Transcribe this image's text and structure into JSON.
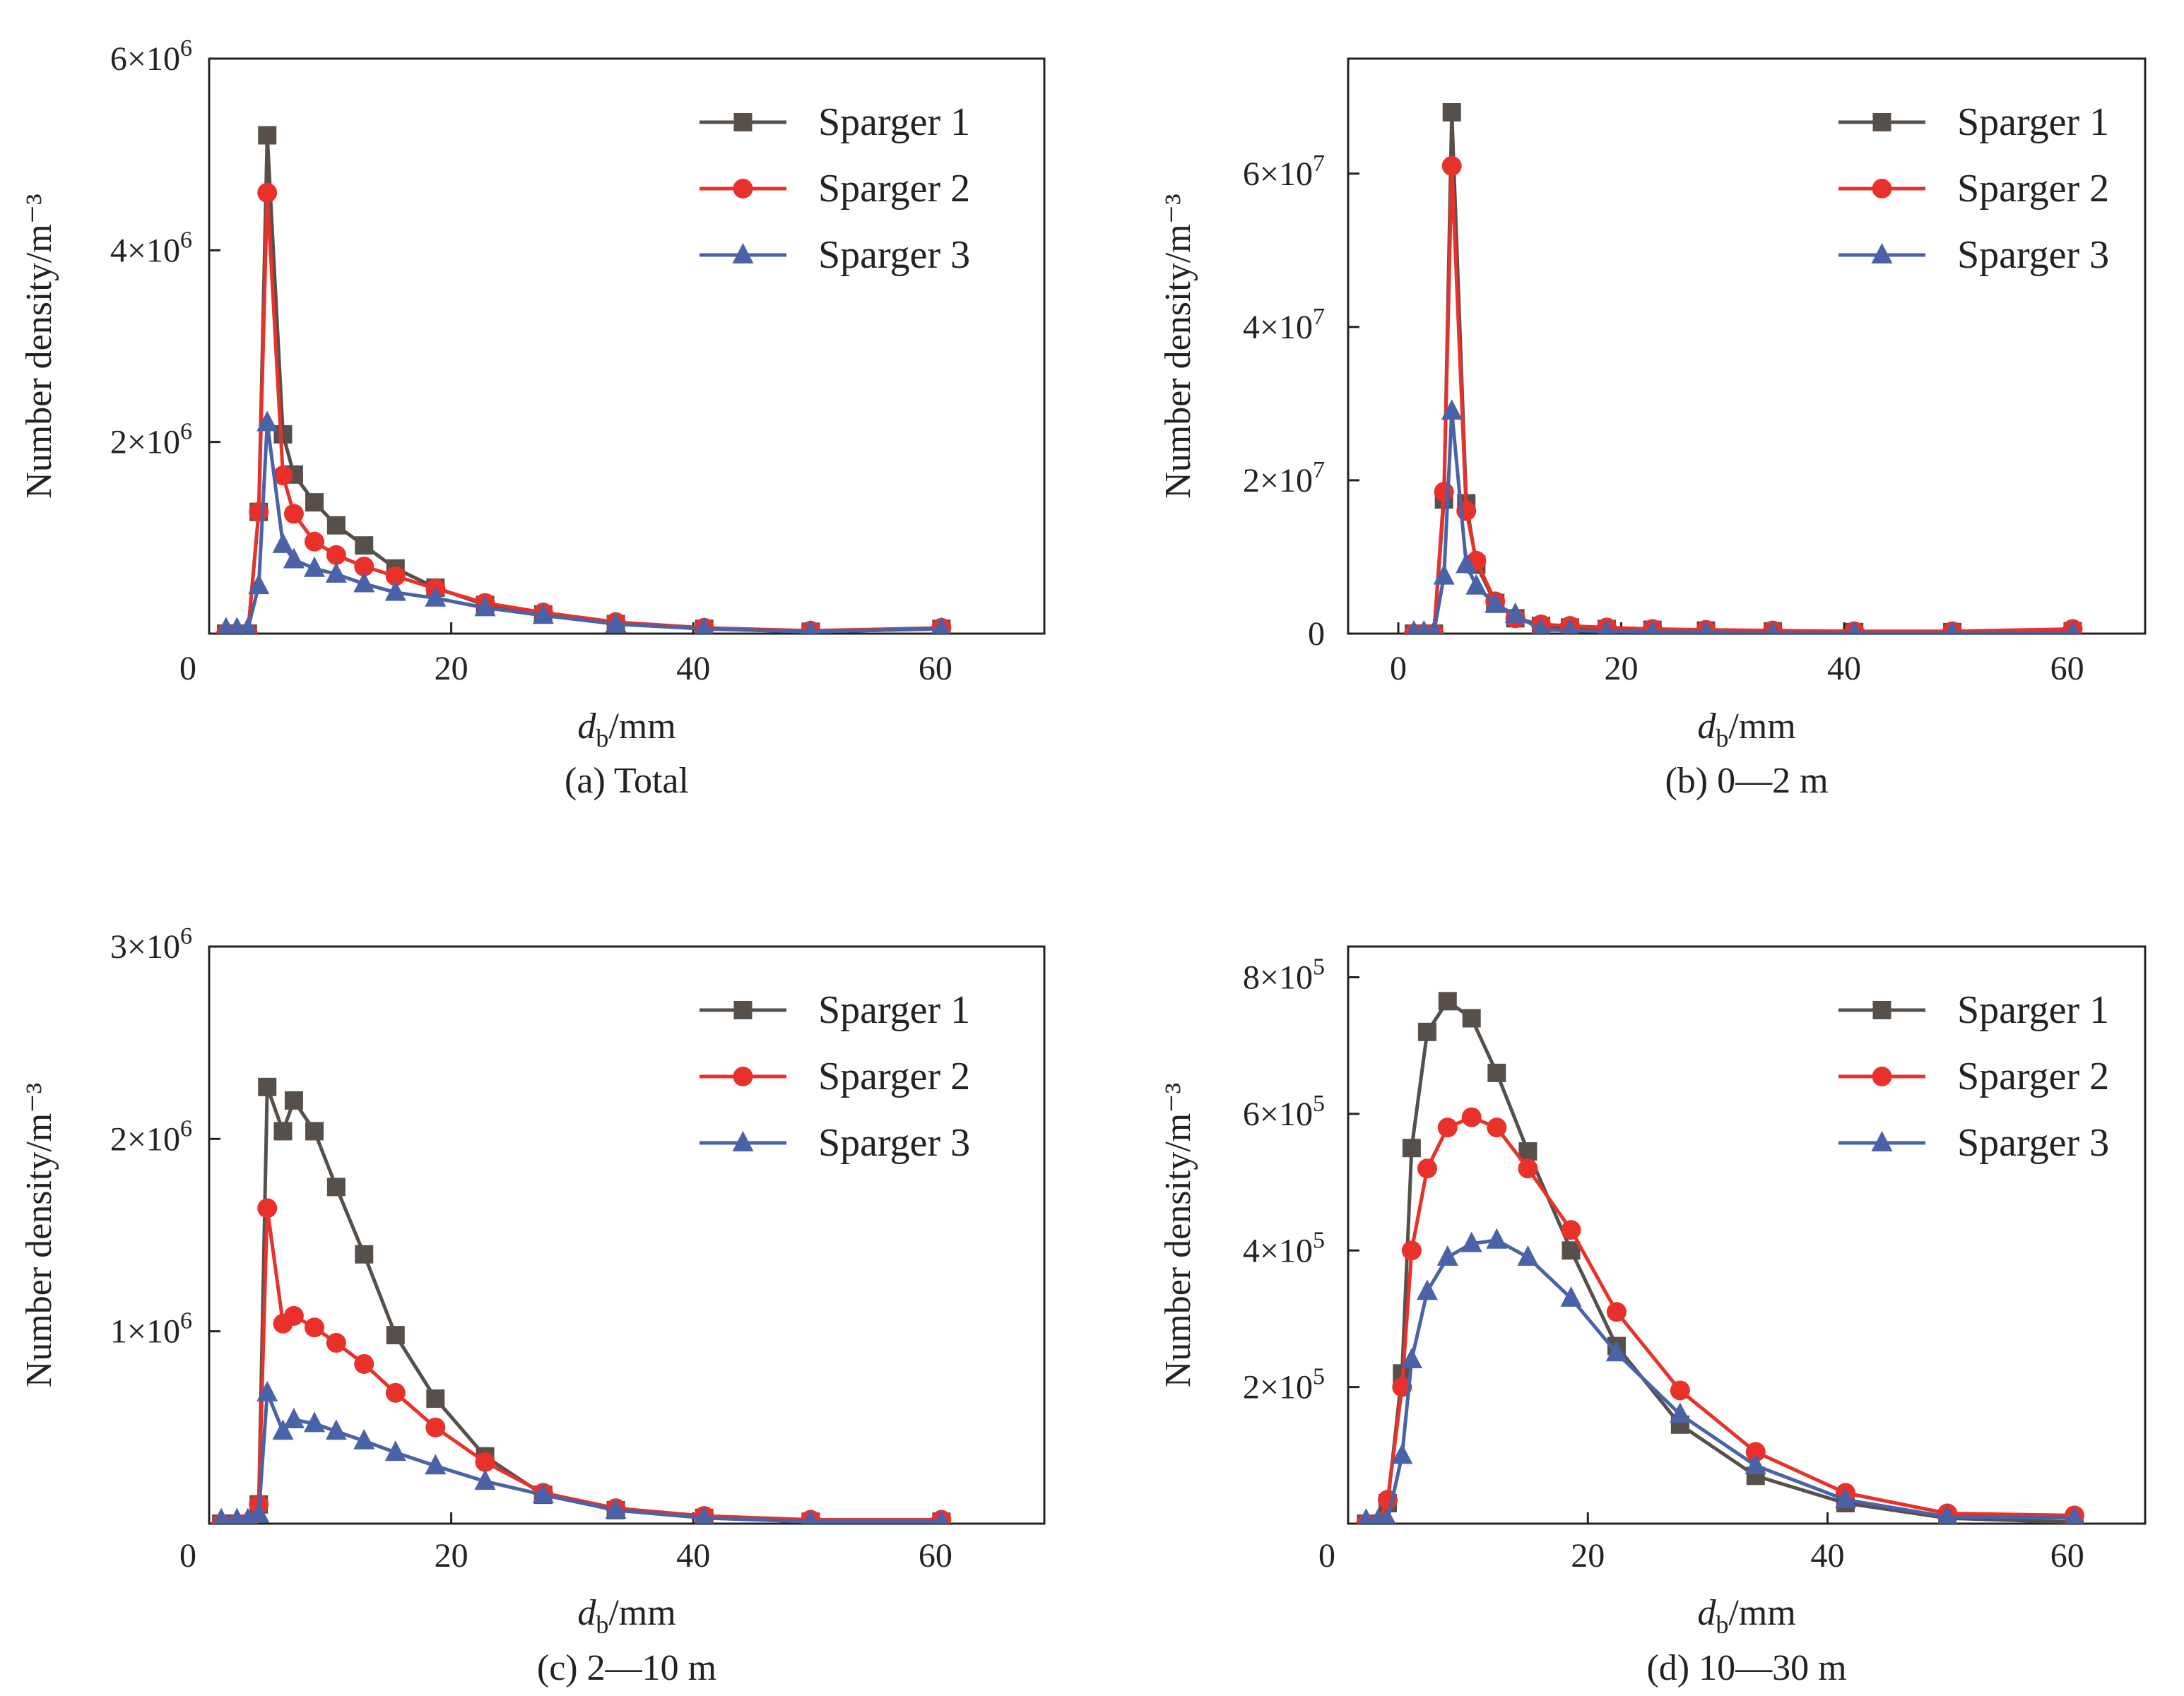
{
  "colors": {
    "Sparger 1": "#574f4a",
    "Sparger 2": "#e8312b",
    "Sparger 3": "#4a62a8"
  },
  "chart_data": [
    {
      "type": "line",
      "caption": "(a) Total",
      "ylabel": "Number density/m⁻³",
      "xlabel": {
        "var": "d",
        "sub": "b",
        "unit": "/mm"
      },
      "xlim": [
        0,
        69
      ],
      "ylim": [
        0,
        6000000
      ],
      "xticks": [
        0,
        20,
        40,
        60
      ],
      "yticks": [
        2000000,
        4000000,
        6000000
      ],
      "legend": "top-right",
      "grid": false,
      "x": [
        1.4,
        2.3,
        3.2,
        4.1,
        4.8,
        6.1,
        7.0,
        8.7,
        10.5,
        12.8,
        15.4,
        18.7,
        22.8,
        27.6,
        33.6,
        40.9,
        49.7,
        60.5
      ],
      "series": [
        {
          "name": "Sparger 1",
          "marker": "square",
          "values": [
            0,
            0,
            0,
            1270000,
            5200000,
            2080000,
            1660000,
            1370000,
            1130000,
            920000,
            680000,
            480000,
            300000,
            200000,
            100000,
            50000,
            20000,
            50000
          ]
        },
        {
          "name": "Sparger 2",
          "marker": "circle",
          "values": [
            0,
            0,
            0,
            1270000,
            4600000,
            1650000,
            1250000,
            960000,
            820000,
            700000,
            600000,
            470000,
            320000,
            220000,
            120000,
            60000,
            30000,
            60000
          ]
        },
        {
          "name": "Sparger 3",
          "marker": "triangle",
          "values": [
            50000,
            50000,
            50000,
            500000,
            2200000,
            930000,
            770000,
            680000,
            620000,
            520000,
            430000,
            370000,
            270000,
            190000,
            100000,
            50000,
            20000,
            50000
          ]
        }
      ]
    },
    {
      "type": "line",
      "caption": "(b) 0—2 m",
      "ylabel": "Number density/m⁻³",
      "xlabel": {
        "var": "d",
        "sub": "b",
        "unit": "/mm"
      },
      "xlim": [
        -4.5,
        67
      ],
      "ylim": [
        0,
        75000000
      ],
      "xticks": [
        0,
        20,
        40,
        60
      ],
      "yticks": [
        0,
        20000000,
        40000000,
        60000000
      ],
      "legend": "top-right",
      "grid": false,
      "x": [
        1.4,
        2.3,
        3.2,
        4.1,
        4.8,
        6.1,
        7.0,
        8.7,
        10.5,
        12.8,
        15.4,
        18.7,
        22.8,
        27.6,
        33.6,
        40.9,
        49.7,
        60.5
      ],
      "series": [
        {
          "name": "Sparger 1",
          "marker": "square",
          "values": [
            0,
            0,
            0,
            17500000,
            68000000,
            17000000,
            9000000,
            4000000,
            2000000,
            1000000,
            800000,
            600000,
            500000,
            400000,
            300000,
            200000,
            200000,
            300000
          ]
        },
        {
          "name": "Sparger 2",
          "marker": "circle",
          "values": [
            0,
            0,
            0,
            18500000,
            61000000,
            16000000,
            9500000,
            4200000,
            2000000,
            1200000,
            1000000,
            800000,
            600000,
            500000,
            400000,
            300000,
            300000,
            600000
          ]
        },
        {
          "name": "Sparger 3",
          "marker": "triangle",
          "values": [
            200000,
            200000,
            200000,
            7500000,
            29000000,
            9000000,
            6200000,
            3800000,
            2500000,
            500000,
            400000,
            300000,
            200000,
            200000,
            100000,
            100000,
            100000,
            100000
          ]
        }
      ]
    },
    {
      "type": "line",
      "caption": "(c) 2—10 m",
      "ylabel": "Number density/m⁻³",
      "xlabel": {
        "var": "d",
        "sub": "b",
        "unit": "/mm"
      },
      "xlim": [
        0,
        69
      ],
      "ylim": [
        0,
        3000000
      ],
      "xticks": [
        0,
        20,
        40,
        60
      ],
      "yticks": [
        1000000,
        2000000,
        3000000
      ],
      "legend": "top-right",
      "grid": false,
      "x": [
        1.0,
        2.3,
        3.2,
        4.1,
        4.8,
        6.1,
        7.0,
        8.7,
        10.5,
        12.8,
        15.4,
        18.7,
        22.8,
        27.6,
        33.6,
        40.9,
        49.7,
        60.5
      ],
      "series": [
        {
          "name": "Sparger 1",
          "marker": "square",
          "values": [
            0,
            0,
            0,
            100000,
            2270000,
            2040000,
            2200000,
            2040000,
            1750000,
            1400000,
            980000,
            650000,
            350000,
            150000,
            70000,
            30000,
            10000,
            10000
          ]
        },
        {
          "name": "Sparger 2",
          "marker": "circle",
          "values": [
            0,
            0,
            0,
            100000,
            1640000,
            1040000,
            1080000,
            1020000,
            940000,
            830000,
            680000,
            500000,
            320000,
            160000,
            80000,
            40000,
            20000,
            20000
          ]
        },
        {
          "name": "Sparger 3",
          "marker": "triangle",
          "values": [
            20000,
            20000,
            20000,
            50000,
            680000,
            480000,
            540000,
            520000,
            480000,
            430000,
            370000,
            300000,
            220000,
            150000,
            70000,
            30000,
            10000,
            10000
          ]
        }
      ]
    },
    {
      "type": "line",
      "caption": "(d) 10—30 m",
      "ylabel": "Number density/m⁻³",
      "xlabel": {
        "var": "d",
        "sub": "b",
        "unit": "/mm"
      },
      "xlim": [
        0,
        66.5
      ],
      "ylim": [
        0,
        845000
      ],
      "xticks": [
        0,
        20,
        40,
        60
      ],
      "yticks": [
        200000,
        400000,
        600000,
        800000
      ],
      "legend": "top-right",
      "grid": false,
      "x": [
        1.5,
        2.5,
        3.3,
        4.5,
        5.3,
        6.6,
        8.3,
        10.3,
        12.4,
        15.0,
        18.6,
        22.4,
        27.7,
        34.0,
        41.5,
        50.0,
        60.6
      ],
      "series": [
        {
          "name": "Sparger 1",
          "marker": "square",
          "values": [
            0,
            0,
            30000,
            220000,
            550000,
            720000,
            765000,
            740000,
            660000,
            545000,
            400000,
            260000,
            145000,
            70000,
            30000,
            8000,
            2000
          ]
        },
        {
          "name": "Sparger 2",
          "marker": "circle",
          "values": [
            0,
            0,
            35000,
            200000,
            400000,
            520000,
            580000,
            595000,
            580000,
            520000,
            430000,
            310000,
            195000,
            105000,
            45000,
            15000,
            12000
          ]
        },
        {
          "name": "Sparger 3",
          "marker": "triangle",
          "values": [
            5000,
            5000,
            5000,
            100000,
            240000,
            340000,
            390000,
            410000,
            415000,
            390000,
            330000,
            250000,
            160000,
            85000,
            35000,
            10000,
            8000
          ]
        }
      ]
    }
  ]
}
